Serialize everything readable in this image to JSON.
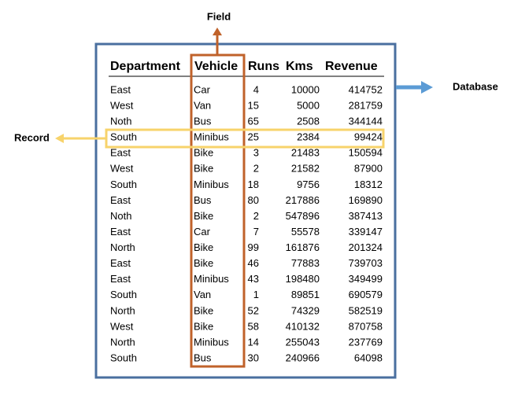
{
  "labels": {
    "field": "Field",
    "database": "Database",
    "record": "Record"
  },
  "table": {
    "headers": [
      "Department",
      "Vehicle",
      "Runs",
      "Kms",
      "Revenue"
    ],
    "rows": [
      [
        "East",
        "Car",
        4,
        10000,
        414752
      ],
      [
        "West",
        "Van",
        15,
        5000,
        281759
      ],
      [
        "Noth",
        "Bus",
        65,
        2508,
        344144
      ],
      [
        "South",
        "Minibus",
        25,
        2384,
        99424
      ],
      [
        "East",
        "Bike",
        3,
        21483,
        150594
      ],
      [
        "West",
        "Bike",
        2,
        21582,
        87900
      ],
      [
        "South",
        "Minibus",
        18,
        9756,
        18312
      ],
      [
        "East",
        "Bus",
        80,
        217886,
        169890
      ],
      [
        "Noth",
        "Bike",
        2,
        547896,
        387413
      ],
      [
        "East",
        "Car",
        7,
        55578,
        339147
      ],
      [
        "North",
        "Bike",
        99,
        161876,
        201324
      ],
      [
        "East",
        "Bike",
        46,
        77883,
        739703
      ],
      [
        "East",
        "Minibus",
        43,
        198480,
        349499
      ],
      [
        "South",
        "Van",
        1,
        89851,
        690579
      ],
      [
        "North",
        "Bike",
        52,
        74329,
        582519
      ],
      [
        "West",
        "Bike",
        58,
        410132,
        870758
      ],
      [
        "North",
        "Minibus",
        14,
        255043,
        237769
      ],
      [
        "South",
        "Bus",
        30,
        240966,
        64098
      ]
    ]
  }
}
